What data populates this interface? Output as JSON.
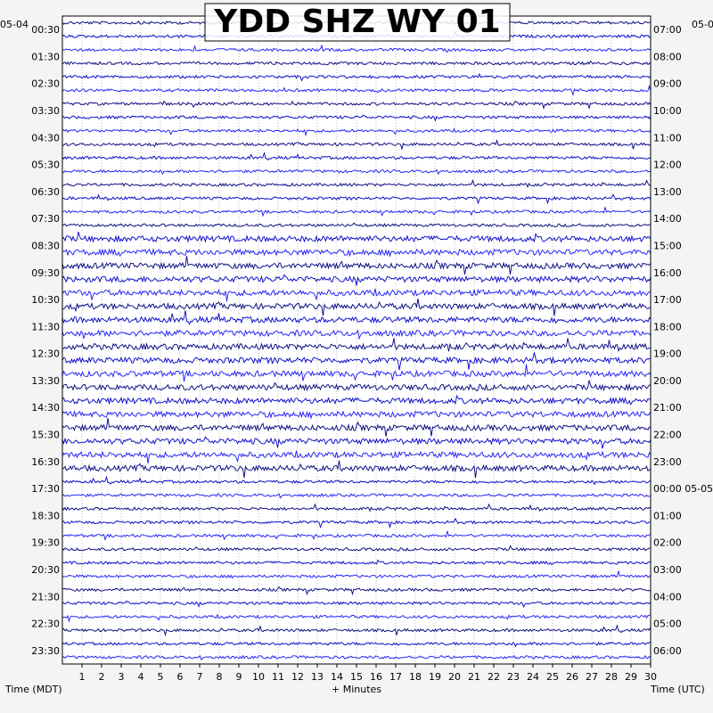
{
  "chart_data": {
    "type": "line",
    "title": "YDD SHZ WY 01",
    "xlabel": "+ Minutes",
    "ylabel_left": "Time (MDT)",
    "ylabel_right": "Time (UTC)",
    "left_date_label": "05-04",
    "right_date_label": "05-0",
    "x_ticks": [
      "1",
      "2",
      "3",
      "4",
      "5",
      "6",
      "7",
      "8",
      "9",
      "10",
      "11",
      "12",
      "13",
      "14",
      "15",
      "16",
      "17",
      "18",
      "19",
      "20",
      "21",
      "22",
      "23",
      "24",
      "25",
      "26",
      "27",
      "28",
      "29",
      "30"
    ],
    "xlim": [
      0,
      30
    ],
    "left_times": [
      "00:30",
      "01:30",
      "02:30",
      "03:30",
      "04:30",
      "05:30",
      "06:30",
      "07:30",
      "08:30",
      "09:30",
      "10:30",
      "11:30",
      "12:30",
      "13:30",
      "14:30",
      "15:30",
      "16:30",
      "17:30",
      "18:30",
      "19:30",
      "20:30",
      "21:30",
      "22:30",
      "23:30"
    ],
    "right_times": [
      "07:00",
      "08:00",
      "09:00",
      "10:00",
      "11:00",
      "12:00",
      "13:00",
      "14:00",
      "15:00",
      "16:00",
      "17:00",
      "18:00",
      "19:00",
      "20:00",
      "21:00",
      "22:00",
      "23:00",
      "00:00 05-05",
      "01:00",
      "02:00",
      "03:00",
      "04:00",
      "05:00",
      "06:00"
    ],
    "trace_rows": 48,
    "trace_colors": [
      "#000080",
      "#0000cd",
      "#1a1aff"
    ],
    "clip_color": "#e00000",
    "grid": true,
    "series": []
  }
}
